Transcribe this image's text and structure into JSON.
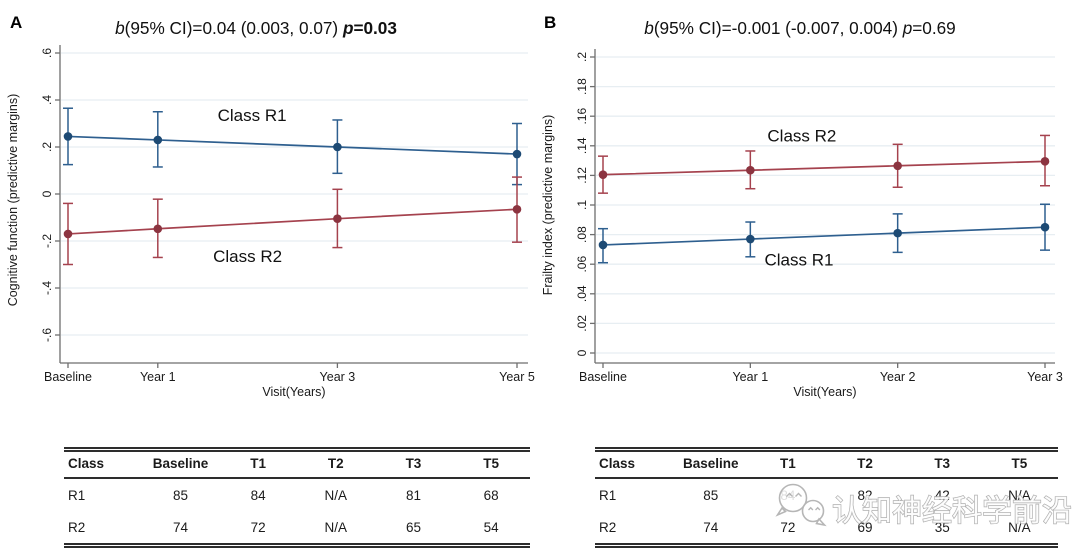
{
  "panels": [
    {
      "letter": "A"
    },
    {
      "letter": "B"
    }
  ],
  "colors": {
    "blue_line": "#2e5f8f",
    "blue_marker": "#1d4a74",
    "red_line": "#a5424e",
    "red_marker": "#8c3440",
    "gridline": "#e7eef2",
    "axis": "#6e6e6e",
    "text": "#1a1a1a"
  },
  "chart_data": [
    {
      "type": "line",
      "title": "b(95% CI)=0.04 (0.003, 0.07) p=0.03",
      "title_segments": [
        {
          "text": "b",
          "style": "italic"
        },
        {
          "text": "(95% CI)=0.04 (0.003, 0.07) ",
          "style": "normal"
        },
        {
          "text": "p",
          "style": "bold-italic"
        },
        {
          "text": "=0.03",
          "style": "bold"
        }
      ],
      "xlabel": "Visit(Years)",
      "ylabel": "Cognitive function (predictive margins)",
      "ylim": [
        -0.6,
        0.6
      ],
      "yticks": [
        0.6,
        0.4,
        0.2,
        0,
        -0.2,
        -0.4,
        -0.6
      ],
      "ytick_labels": [
        ".6",
        ".4",
        ".2",
        "0",
        "-.2",
        "-.4",
        "-.6"
      ],
      "x_values": [
        0,
        1,
        3,
        5
      ],
      "xtick_labels": [
        "Baseline",
        "Year 1",
        "Year 3",
        "Year 5"
      ],
      "grid": true,
      "series": [
        {
          "name": "Class R1",
          "color": "#2e5f8f",
          "marker_color": "#1d4a74",
          "values": [
            0.245,
            0.23,
            0.2,
            0.17
          ],
          "ci_low": [
            0.125,
            0.115,
            0.088,
            0.04
          ],
          "ci_high": [
            0.365,
            0.35,
            0.315,
            0.3
          ],
          "label_x": 2.05,
          "label_y": 0.31
        },
        {
          "name": "Class R2",
          "color": "#a5424e",
          "marker_color": "#8c3440",
          "values": [
            -0.17,
            -0.148,
            -0.105,
            -0.065
          ],
          "ci_low": [
            -0.3,
            -0.27,
            -0.228,
            -0.205
          ],
          "ci_high": [
            -0.04,
            -0.022,
            0.02,
            0.072
          ],
          "label_x": 2.0,
          "label_y": -0.29
        }
      ]
    },
    {
      "type": "line",
      "title": "b(95% CI)=-0.001 (-0.007, 0.004) p=0.69",
      "title_segments": [
        {
          "text": "b",
          "style": "italic"
        },
        {
          "text": "(95% CI)=-0.001 (-0.007, 0.004) ",
          "style": "normal"
        },
        {
          "text": "p",
          "style": "italic"
        },
        {
          "text": "=0.69",
          "style": "normal"
        }
      ],
      "xlabel": "Visit(Years)",
      "ylabel": "Frailty index (predictive margins)",
      "ylim": [
        0,
        0.2
      ],
      "yticks": [
        0.2,
        0.18,
        0.16,
        0.14,
        0.12,
        0.1,
        0.08,
        0.06,
        0.04,
        0.02,
        0
      ],
      "ytick_labels": [
        ".2",
        ".18",
        ".16",
        ".14",
        ".12",
        ".1",
        ".08",
        ".06",
        ".04",
        ".02",
        "0"
      ],
      "x_values": [
        0,
        1,
        2,
        3
      ],
      "xtick_labels": [
        "Baseline",
        "Year 1",
        "Year 2",
        "Year 3"
      ],
      "grid": true,
      "series": [
        {
          "name": "Class R2",
          "color": "#a5424e",
          "marker_color": "#8c3440",
          "values": [
            0.1205,
            0.1235,
            0.1265,
            0.1295
          ],
          "ci_low": [
            0.108,
            0.111,
            0.112,
            0.113
          ],
          "ci_high": [
            0.133,
            0.1365,
            0.141,
            0.147
          ],
          "label_x": 1.35,
          "label_y": 0.143
        },
        {
          "name": "Class R1",
          "color": "#2e5f8f",
          "marker_color": "#1d4a74",
          "values": [
            0.073,
            0.077,
            0.081,
            0.085
          ],
          "ci_low": [
            0.061,
            0.065,
            0.068,
            0.0695
          ],
          "ci_high": [
            0.084,
            0.0885,
            0.094,
            0.1005
          ],
          "label_x": 1.33,
          "label_y": 0.059
        }
      ]
    }
  ],
  "tables": [
    {
      "headers": [
        "Class",
        "Baseline",
        "T1",
        "T2",
        "T3",
        "T5"
      ],
      "rows": [
        [
          "R1",
          "85",
          "84",
          "N/A",
          "81",
          "68"
        ],
        [
          "R2",
          "74",
          "72",
          "N/A",
          "65",
          "54"
        ]
      ]
    },
    {
      "headers": [
        "Class",
        "Baseline",
        "T1",
        "T2",
        "T3",
        "T5"
      ],
      "rows": [
        [
          "R1",
          "85",
          "84",
          "82",
          "42",
          "N/A"
        ],
        [
          "R2",
          "74",
          "72",
          "69",
          "35",
          "N/A"
        ]
      ]
    }
  ],
  "watermark": {
    "logo": "wechat-bubbles-icon",
    "text": "认知神经科学前沿"
  }
}
